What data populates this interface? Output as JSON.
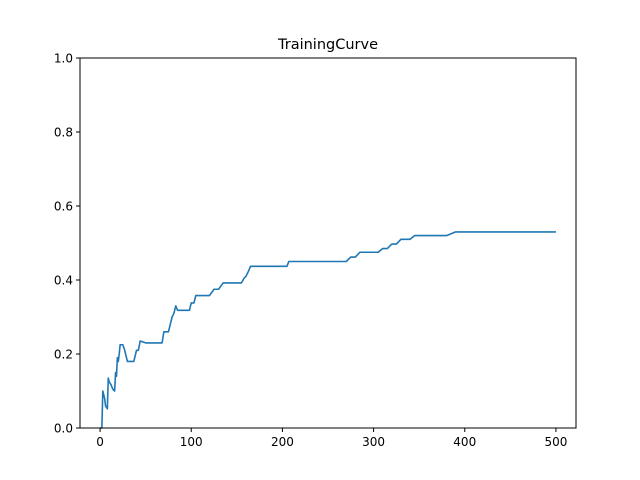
{
  "chart_data": {
    "type": "line",
    "title": "TrainingCurve",
    "xlabel": "",
    "ylabel": "",
    "xlim": [
      -22,
      522
    ],
    "ylim": [
      0,
      1
    ],
    "xticks": [
      0,
      100,
      200,
      300,
      400,
      500
    ],
    "yticks": [
      0.0,
      0.2,
      0.4,
      0.6,
      0.8,
      1.0
    ],
    "xtick_labels": [
      "0",
      "100",
      "200",
      "300",
      "400",
      "500"
    ],
    "ytick_labels": [
      "0.0",
      "0.2",
      "0.4",
      "0.6",
      "0.8",
      "1.0"
    ],
    "grid": false,
    "line_color": "#1f77b4",
    "series": [
      {
        "x": [
          0,
          1,
          2,
          3,
          5,
          6,
          8,
          9,
          10,
          12,
          14,
          16,
          17,
          18,
          19,
          20,
          21,
          22,
          25,
          27,
          30,
          35,
          37,
          40,
          42,
          44,
          50,
          60,
          68,
          70,
          75,
          77,
          79,
          81,
          83,
          85,
          95,
          98,
          100,
          103,
          105,
          110,
          115,
          120,
          125,
          130,
          135,
          140,
          145,
          150,
          155,
          158,
          160,
          163,
          165,
          170,
          180,
          190,
          200,
          205,
          207,
          210,
          230,
          250,
          270,
          275,
          280,
          285,
          290,
          300,
          305,
          310,
          315,
          320,
          325,
          330,
          340,
          345,
          350,
          360,
          380,
          390,
          400,
          450,
          500
        ],
        "y": [
          0,
          0,
          0,
          0.1,
          0.08,
          0.06,
          0.052,
          0.135,
          0.125,
          0.117,
          0.105,
          0.1,
          0.15,
          0.14,
          0.19,
          0.18,
          0.2,
          0.225,
          0.225,
          0.21,
          0.18,
          0.18,
          0.18,
          0.21,
          0.21,
          0.235,
          0.23,
          0.23,
          0.23,
          0.26,
          0.26,
          0.28,
          0.3,
          0.31,
          0.33,
          0.318,
          0.318,
          0.318,
          0.338,
          0.338,
          0.358,
          0.358,
          0.358,
          0.358,
          0.375,
          0.375,
          0.392,
          0.392,
          0.392,
          0.392,
          0.392,
          0.405,
          0.41,
          0.425,
          0.437,
          0.437,
          0.437,
          0.437,
          0.437,
          0.437,
          0.45,
          0.45,
          0.45,
          0.45,
          0.45,
          0.462,
          0.462,
          0.475,
          0.475,
          0.475,
          0.475,
          0.485,
          0.485,
          0.497,
          0.497,
          0.51,
          0.51,
          0.52,
          0.52,
          0.52,
          0.52,
          0.53,
          0.53,
          0.53,
          0.53
        ]
      }
    ]
  }
}
